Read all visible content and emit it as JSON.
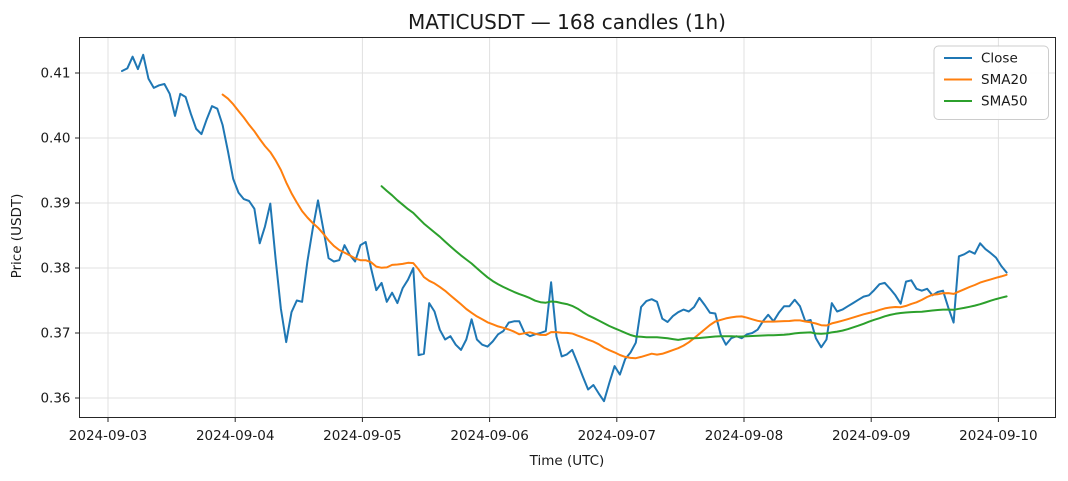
{
  "chart_data": {
    "type": "line",
    "title": "MATICUSDT — 168 candles (1h)",
    "xlabel": "Time (UTC)",
    "ylabel": "Price (USDT)",
    "candle_count": 168,
    "candle_interval": "1h",
    "grid": true,
    "x_axis": {
      "tick_labels": [
        "2024-09-03",
        "2024-09-04",
        "2024-09-05",
        "2024-09-06",
        "2024-09-07",
        "2024-09-08",
        "2024-09-09",
        "2024-09-10"
      ]
    },
    "y_axis": {
      "ticks": [
        0.36,
        0.37,
        0.38,
        0.39,
        0.4,
        0.41
      ],
      "ylim": [
        0.357,
        0.4155
      ]
    },
    "legend": {
      "location": "upper right",
      "entries": [
        {
          "label": "Close",
          "color": "#1f77b4"
        },
        {
          "label": "SMA20",
          "color": "#ff7f0e"
        },
        {
          "label": "SMA50",
          "color": "#2ca02c"
        }
      ]
    },
    "series": [
      {
        "name": "Close",
        "color": "#1f77b4",
        "kind": "raw",
        "values": [
          0.4103,
          0.4107,
          0.4125,
          0.4106,
          0.4128,
          0.4091,
          0.4077,
          0.4081,
          0.4083,
          0.4068,
          0.4034,
          0.4068,
          0.4063,
          0.4037,
          0.4014,
          0.4006,
          0.4029,
          0.4049,
          0.4045,
          0.402,
          0.398,
          0.3937,
          0.3916,
          0.3906,
          0.3903,
          0.3891,
          0.3838,
          0.3864,
          0.3899,
          0.3814,
          0.3737,
          0.3686,
          0.3732,
          0.375,
          0.3748,
          0.381,
          0.386,
          0.3904,
          0.386,
          0.3815,
          0.381,
          0.3812,
          0.3835,
          0.382,
          0.381,
          0.3835,
          0.384,
          0.38,
          0.3766,
          0.3777,
          0.3748,
          0.3762,
          0.3746,
          0.3769,
          0.3782,
          0.38,
          0.3666,
          0.3668,
          0.3746,
          0.3733,
          0.3705,
          0.369,
          0.3695,
          0.3682,
          0.3674,
          0.369,
          0.3721,
          0.369,
          0.3682,
          0.3679,
          0.3687,
          0.3698,
          0.3703,
          0.3716,
          0.3718,
          0.3718,
          0.37,
          0.3695,
          0.3698,
          0.37,
          0.3703,
          0.3778,
          0.3695,
          0.3664,
          0.3667,
          0.3674,
          0.3654,
          0.3633,
          0.3613,
          0.362,
          0.3607,
          0.3595,
          0.3623,
          0.3649,
          0.3636,
          0.366,
          0.367,
          0.3685,
          0.374,
          0.3749,
          0.3752,
          0.3748,
          0.3722,
          0.3717,
          0.3726,
          0.3732,
          0.3736,
          0.3733,
          0.374,
          0.3754,
          0.3743,
          0.3731,
          0.373,
          0.3698,
          0.3682,
          0.3692,
          0.3695,
          0.3692,
          0.3698,
          0.37,
          0.3705,
          0.3718,
          0.3728,
          0.3718,
          0.3731,
          0.3741,
          0.3741,
          0.3751,
          0.3741,
          0.3718,
          0.372,
          0.3692,
          0.3678,
          0.369,
          0.3746,
          0.3733,
          0.3736,
          0.3741,
          0.3746,
          0.3751,
          0.3756,
          0.3758,
          0.3766,
          0.3775,
          0.3777,
          0.3768,
          0.3758,
          0.3745,
          0.3779,
          0.3781,
          0.3768,
          0.3765,
          0.3768,
          0.3758,
          0.3763,
          0.3765,
          0.3739,
          0.3716,
          0.3818,
          0.3821,
          0.3826,
          0.3822,
          0.3838,
          0.3829,
          0.3823,
          0.3816,
          0.3803,
          0.3793
        ]
      },
      {
        "name": "SMA20",
        "color": "#ff7f0e",
        "kind": "sma_of_close",
        "window": 20
      },
      {
        "name": "SMA50",
        "color": "#2ca02c",
        "kind": "sma_of_close",
        "window": 50
      }
    ],
    "colors": {
      "background": "#ffffff",
      "grid": "#e0e0e0",
      "spine": "#262626",
      "tick_text": "#262626",
      "legend_border": "#cccccc",
      "legend_background": "#ffffff"
    }
  }
}
